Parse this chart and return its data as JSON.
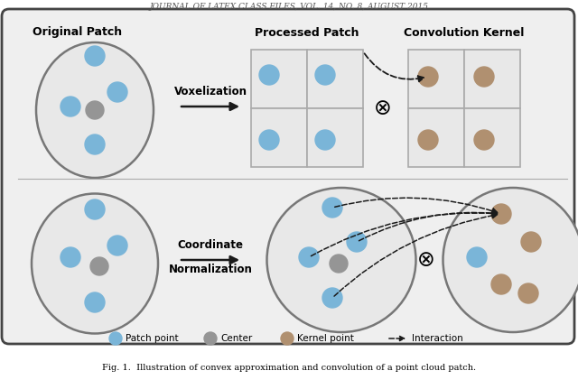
{
  "title_top": "JOURNAL OF LATEX CLASS FILES, VOL. 14, NO. 8, AUGUST 2015",
  "caption": "Fig. 1.  Illustration of convex approximation and convolution of a point cloud patch.",
  "bg_color": "#efefef",
  "outer_bg": "#ffffff",
  "patch_fill": "#e8e8e8",
  "blue_point": "#7ab5d8",
  "gray_point": "#959595",
  "brown_point": "#b09070",
  "grid_fill": "#e8e8e8",
  "grid_stroke": "#aaaaaa",
  "arrow_color": "#1a1a1a",
  "label1": "Original Patch",
  "label2": "Processed Patch",
  "label3": "Convolution Kernel",
  "arrow_text_top": "Voxelization",
  "arrow_text_bot1": "Coordinate",
  "arrow_text_bot2": "Normalization"
}
